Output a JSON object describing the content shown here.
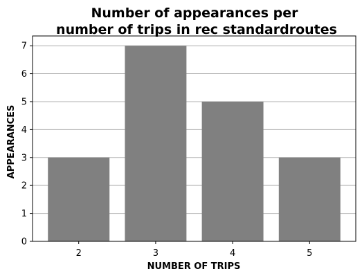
{
  "chart_data": {
    "type": "bar",
    "title": "Number of appearances per\nnumber of trips in rec standardroutes",
    "title_lines": [
      "Number of appearances per",
      "number of trips in rec standardroutes"
    ],
    "xlabel": "NUMBER OF TRIPS",
    "ylabel": "APPEARANCES",
    "categories": [
      "2",
      "3",
      "4",
      "5"
    ],
    "values": [
      3,
      7,
      5,
      3
    ],
    "ylim": [
      0,
      7.35
    ],
    "yticks": [
      0,
      1,
      2,
      3,
      4,
      5,
      6,
      7
    ],
    "grid": "y",
    "bar_color": "#808080",
    "grid_color": "#b0b0b0"
  }
}
